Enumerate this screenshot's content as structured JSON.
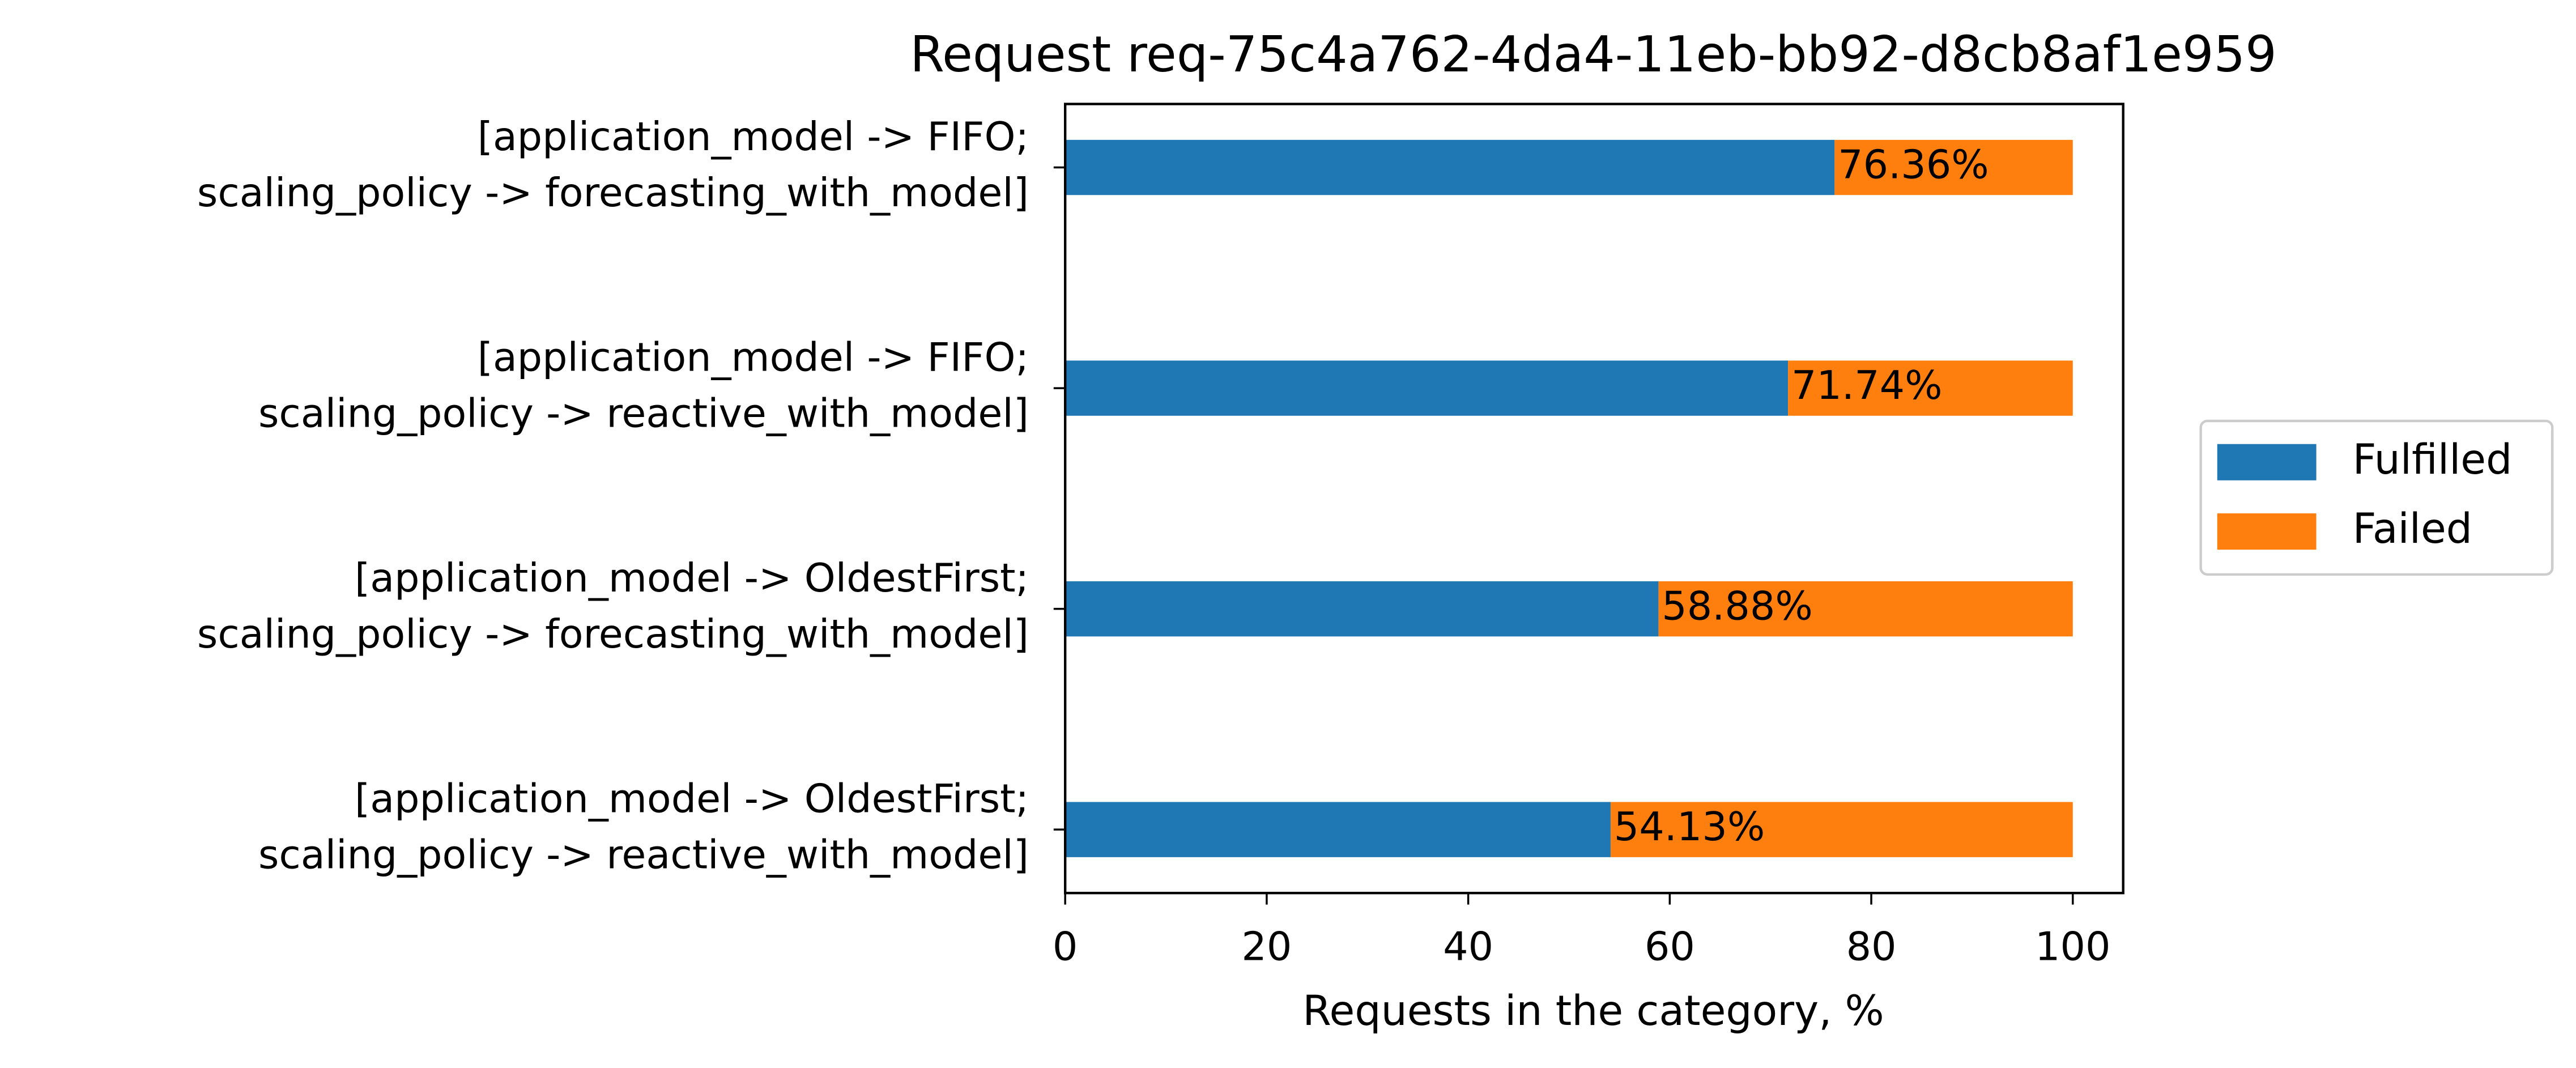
{
  "chart_data": {
    "type": "bar",
    "orientation": "horizontal",
    "stacked": true,
    "title": "Request req-75c4a762-4da4-11eb-bb92-d8cb8af1e959",
    "xlabel": "Requests in the category, %",
    "categories": [
      "[application_model -> FIFO;\nscaling_policy -> forecasting_with_model]",
      "[application_model -> FIFO;\nscaling_policy -> reactive_with_model]",
      "[application_model -> OldestFirst;\nscaling_policy -> forecasting_with_model]",
      "[application_model -> OldestFirst;\nscaling_policy -> reactive_with_model]"
    ],
    "series": [
      {
        "name": "Fulfilled",
        "color": "#1f77b4",
        "values": [
          76.36,
          71.74,
          58.88,
          54.13
        ],
        "value_labels": [
          "76.36%",
          "71.74%",
          "58.88%",
          "54.13%"
        ]
      },
      {
        "name": "Failed",
        "color": "#ff7f0e",
        "values": [
          23.64,
          28.26,
          41.12,
          45.87
        ]
      }
    ],
    "xlim": [
      0,
      105
    ],
    "xticks": [
      0,
      20,
      40,
      60,
      80,
      100
    ],
    "legend": "outside-right"
  }
}
